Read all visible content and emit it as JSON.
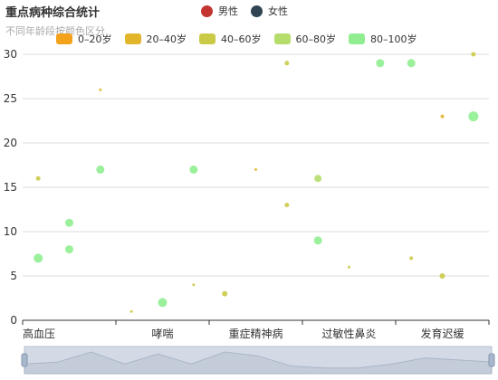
{
  "title": "重点病种综合统计",
  "subtitle": "不同年龄段按颜色区分",
  "gender_legend": [
    {
      "label": "男性",
      "color": "#c23531"
    },
    {
      "label": "女性",
      "color": "#2f4554"
    }
  ],
  "age_legend": [
    {
      "label": "0–20岁",
      "color": "#f4a11c"
    },
    {
      "label": "20–40岁",
      "color": "#e2b52a"
    },
    {
      "label": "40–60岁",
      "color": "#cbca48"
    },
    {
      "label": "60–80岁",
      "color": "#b5dd6b"
    },
    {
      "label": "80–100岁",
      "color": "#90ee90"
    }
  ],
  "chart_data": {
    "type": "scatter",
    "title": "重点病种综合统计",
    "subtitle": "不同年龄段按颜色区分",
    "categories": [
      "高血压",
      "",
      "哮喘",
      "",
      "重症精神病",
      "",
      "过敏性鼻炎",
      "",
      "发育迟缓",
      "",
      ""
    ],
    "category_labels": [
      "高血压",
      "哮喘",
      "重症精神病",
      "过敏性鼻炎",
      "发育迟缓"
    ],
    "ylim": [
      0,
      30
    ],
    "yticks": [
      0,
      5,
      10,
      15,
      20,
      25,
      30
    ],
    "grid": true,
    "points": [
      {
        "x": 0,
        "y": 16,
        "size": 4,
        "color": "#cbca48"
      },
      {
        "x": 0,
        "y": 7,
        "size": 9,
        "color": "#90ee90"
      },
      {
        "x": 1,
        "y": 11,
        "size": 8,
        "color": "#90ee90"
      },
      {
        "x": 1,
        "y": 8,
        "size": 8,
        "color": "#90ee90"
      },
      {
        "x": 2,
        "y": 26,
        "size": 2,
        "color": "#e2b52a"
      },
      {
        "x": 2,
        "y": 17,
        "size": 8,
        "color": "#90ee90"
      },
      {
        "x": 3,
        "y": 1,
        "size": 1,
        "color": "#cbca48"
      },
      {
        "x": 4,
        "y": 2,
        "size": 9,
        "color": "#90ee90"
      },
      {
        "x": 5,
        "y": 17,
        "size": 8,
        "color": "#90ee90"
      },
      {
        "x": 5,
        "y": 4,
        "size": 1,
        "color": "#cbca48"
      },
      {
        "x": 6,
        "y": 3,
        "size": 5,
        "color": "#cbca48"
      },
      {
        "x": 7,
        "y": 17,
        "size": 2,
        "color": "#e2b52a"
      },
      {
        "x": 8,
        "y": 29,
        "size": 4,
        "color": "#cbca48"
      },
      {
        "x": 8,
        "y": 13,
        "size": 4,
        "color": "#cbca48"
      },
      {
        "x": 9,
        "y": 16,
        "size": 7,
        "color": "#b5dd6b"
      },
      {
        "x": 9,
        "y": 9,
        "size": 8,
        "color": "#90ee90"
      },
      {
        "x": 10,
        "y": 6,
        "size": 1,
        "color": "#cbca48"
      },
      {
        "x": 11,
        "y": 29,
        "size": 8,
        "color": "#90ee90"
      },
      {
        "x": 12,
        "y": 29,
        "size": 8,
        "color": "#90ee90"
      },
      {
        "x": 12,
        "y": 7,
        "size": 3,
        "color": "#cbca48"
      },
      {
        "x": 13,
        "y": 23,
        "size": 3,
        "color": "#e2b52a"
      },
      {
        "x": 13,
        "y": 5,
        "size": 5,
        "color": "#cbca48"
      },
      {
        "x": 14,
        "y": 30,
        "size": 4,
        "color": "#cbca48"
      },
      {
        "x": 14,
        "y": 23,
        "size": 10,
        "color": "#90ee90"
      }
    ],
    "zoom_series": [
      3,
      4,
      9,
      3,
      8,
      3,
      9,
      7,
      2,
      1,
      1,
      3,
      6,
      5,
      4
    ]
  }
}
